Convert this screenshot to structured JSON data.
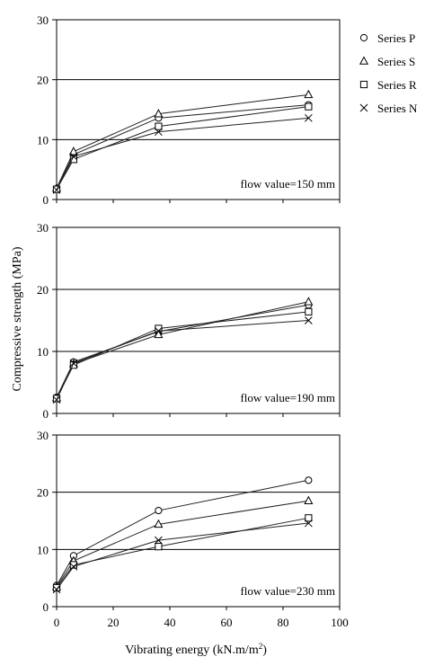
{
  "figure": {
    "ylabel": "Compressive strength (MPa)",
    "xlabel_prefix": "Vibrating energy (kN.m/m",
    "xlabel_sup": "2",
    "xlabel_suffix": ")",
    "x_ticks": [
      "0",
      "20",
      "40",
      "60",
      "80",
      "100"
    ],
    "y_ticks": [
      "0",
      "10",
      "20",
      "30"
    ]
  },
  "legend": {
    "placement": "top-right, outside plots",
    "items": [
      {
        "label": "Series P",
        "marker": "circle"
      },
      {
        "label": "Series S",
        "marker": "triangle"
      },
      {
        "label": "Series R",
        "marker": "square"
      },
      {
        "label": "Series N",
        "marker": "cross"
      }
    ]
  },
  "chart_data": [
    {
      "type": "line",
      "annotation": "flow value=150 mm",
      "xlim": [
        0,
        100
      ],
      "ylim": [
        0,
        30
      ],
      "grid": "horizontal at 10 and 20",
      "x": [
        0,
        6,
        36,
        89
      ],
      "series": [
        {
          "name": "Series P",
          "marker": "circle",
          "values": [
            1.8,
            7.5,
            13.6,
            15.8
          ]
        },
        {
          "name": "Series S",
          "marker": "triangle",
          "values": [
            1.9,
            8.0,
            14.3,
            17.5
          ]
        },
        {
          "name": "Series R",
          "marker": "square",
          "values": [
            1.7,
            6.7,
            12.2,
            15.5
          ]
        },
        {
          "name": "Series N",
          "marker": "cross",
          "values": [
            1.6,
            7.2,
            11.3,
            13.6
          ]
        }
      ]
    },
    {
      "type": "line",
      "annotation": "flow value=190 mm",
      "xlim": [
        0,
        100
      ],
      "ylim": [
        0,
        30
      ],
      "grid": "horizontal at 10 and 20",
      "x": [
        0,
        6,
        36,
        89
      ],
      "series": [
        {
          "name": "Series P",
          "marker": "circle",
          "values": [
            2.6,
            8.3,
            13.2,
            17.5
          ]
        },
        {
          "name": "Series S",
          "marker": "triangle",
          "values": [
            2.5,
            8.0,
            12.7,
            18.0
          ]
        },
        {
          "name": "Series R",
          "marker": "square",
          "values": [
            2.4,
            7.8,
            13.7,
            16.4
          ]
        },
        {
          "name": "Series N",
          "marker": "cross",
          "values": [
            2.2,
            8.1,
            13.3,
            15.0
          ]
        }
      ]
    },
    {
      "type": "line",
      "annotation": "flow value=230 mm",
      "xlim": [
        0,
        100
      ],
      "ylim": [
        0,
        30
      ],
      "grid": "horizontal at 10 and 20",
      "x": [
        0,
        6,
        36,
        89
      ],
      "series": [
        {
          "name": "Series P",
          "marker": "circle",
          "values": [
            3.7,
            8.9,
            16.8,
            22.1
          ]
        },
        {
          "name": "Series S",
          "marker": "triangle",
          "values": [
            3.5,
            8.0,
            14.4,
            18.5
          ]
        },
        {
          "name": "Series R",
          "marker": "square",
          "values": [
            3.3,
            7.3,
            10.5,
            15.5
          ]
        },
        {
          "name": "Series N",
          "marker": "cross",
          "values": [
            3.0,
            7.0,
            11.6,
            14.6
          ]
        }
      ]
    }
  ]
}
